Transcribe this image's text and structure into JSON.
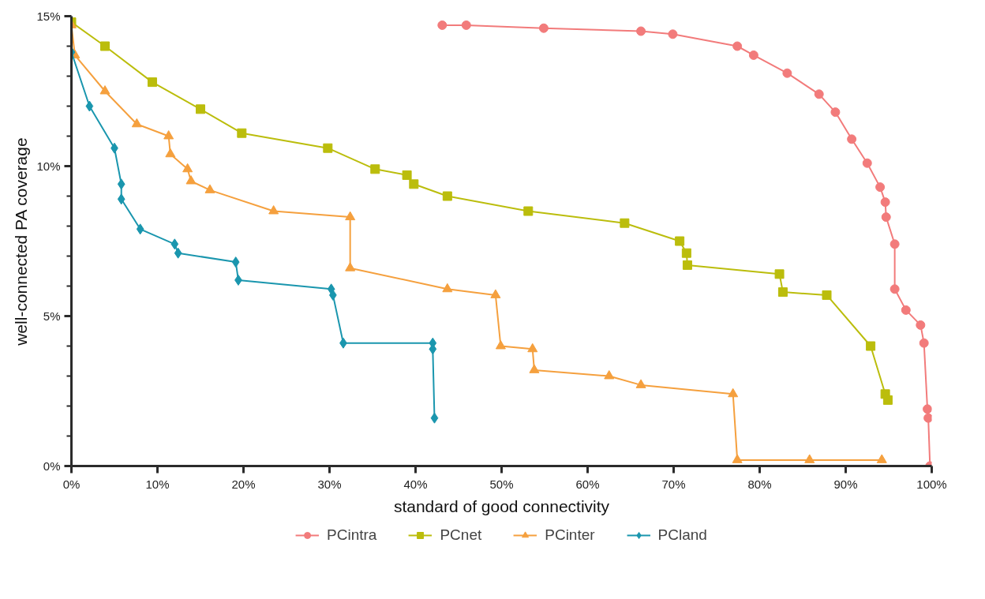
{
  "chart_data": {
    "type": "line",
    "xlabel": "standard of good connectivity",
    "ylabel": "well-connected PA coverage",
    "xlim": [
      0,
      100
    ],
    "ylim": [
      0,
      15
    ],
    "xticks": [
      {
        "value": 0,
        "label": "0%"
      },
      {
        "value": 10,
        "label": "10%"
      },
      {
        "value": 20,
        "label": "20%"
      },
      {
        "value": 30,
        "label": "30%"
      },
      {
        "value": 40,
        "label": "40%"
      },
      {
        "value": 50,
        "label": "50%"
      },
      {
        "value": 60,
        "label": "60%"
      },
      {
        "value": 70,
        "label": "70%"
      },
      {
        "value": 80,
        "label": "80%"
      },
      {
        "value": 90,
        "label": "90%"
      },
      {
        "value": 100,
        "label": "100%"
      }
    ],
    "yticks": [
      {
        "value": 0,
        "label": "0%"
      },
      {
        "value": 1,
        "label": null
      },
      {
        "value": 2,
        "label": null
      },
      {
        "value": 3,
        "label": null
      },
      {
        "value": 4,
        "label": null
      },
      {
        "value": 5,
        "label": "5%"
      },
      {
        "value": 6,
        "label": null
      },
      {
        "value": 7,
        "label": null
      },
      {
        "value": 8,
        "label": null
      },
      {
        "value": 9,
        "label": null
      },
      {
        "value": 10,
        "label": "10%"
      },
      {
        "value": 11,
        "label": null
      },
      {
        "value": 12,
        "label": null
      },
      {
        "value": 13,
        "label": null
      },
      {
        "value": 14,
        "label": null
      },
      {
        "value": 15,
        "label": "15%"
      }
    ],
    "grid": false,
    "legend": "bottom",
    "line_style": "solid",
    "series": [
      {
        "name": "PCintra",
        "color": "#f27b7b",
        "marker": "circle",
        "x": [
          43.1,
          45.9,
          54.9,
          66.2,
          69.9,
          77.4,
          79.3,
          83.2,
          86.9,
          88.8,
          90.7,
          92.5,
          94.0,
          94.6,
          94.7,
          95.7,
          95.7,
          97.0,
          98.7,
          99.1,
          99.5,
          99.6,
          99.8
        ],
        "values": [
          14.7,
          14.7,
          14.6,
          14.5,
          14.4,
          14.0,
          13.7,
          13.1,
          12.4,
          11.8,
          10.9,
          10.1,
          9.3,
          8.8,
          8.3,
          7.4,
          5.9,
          5.2,
          4.7,
          4.1,
          1.9,
          1.6,
          0
        ]
      },
      {
        "name": "PCnet",
        "color": "#bbbd0c",
        "marker": "square",
        "x": [
          0,
          3.9,
          9.4,
          15.0,
          19.8,
          29.8,
          35.3,
          39.0,
          39.8,
          43.7,
          53.1,
          64.3,
          70.7,
          71.5,
          71.6,
          82.3,
          82.7,
          87.8,
          92.9,
          94.6,
          94.9
        ],
        "values": [
          14.8,
          14.0,
          12.8,
          11.9,
          11.1,
          10.6,
          9.9,
          9.7,
          9.4,
          9.0,
          8.5,
          8.1,
          7.5,
          7.1,
          6.7,
          6.4,
          5.8,
          5.7,
          4.0,
          2.4,
          2.2
        ]
      },
      {
        "name": "PCinter",
        "color": "#f5a03e",
        "marker": "triangle",
        "x": [
          0,
          0.4,
          3.9,
          7.6,
          11.3,
          11.5,
          13.5,
          13.9,
          16.1,
          23.5,
          32.4,
          32.4,
          43.7,
          49.3,
          49.9,
          53.6,
          53.8,
          62.5,
          66.2,
          76.9,
          77.4,
          85.8,
          94.2
        ],
        "values": [
          14.7,
          13.7,
          12.5,
          11.4,
          11.0,
          10.4,
          9.9,
          9.5,
          9.2,
          8.5,
          8.3,
          6.6,
          5.9,
          5.7,
          4.0,
          3.9,
          3.2,
          3.0,
          2.7,
          2.4,
          0.2,
          0.2,
          0.2
        ]
      },
      {
        "name": "PCland",
        "color": "#1a96ae",
        "marker": "diamond",
        "x": [
          0,
          2.1,
          5.0,
          5.8,
          5.8,
          8.0,
          12.0,
          12.4,
          19.1,
          19.4,
          30.2,
          30.4,
          31.6,
          42.0,
          42.0,
          42.2
        ],
        "values": [
          13.8,
          12.0,
          10.6,
          9.4,
          8.9,
          7.9,
          7.4,
          7.1,
          6.8,
          6.2,
          5.9,
          5.7,
          4.1,
          4.1,
          3.9,
          1.6
        ]
      }
    ]
  }
}
